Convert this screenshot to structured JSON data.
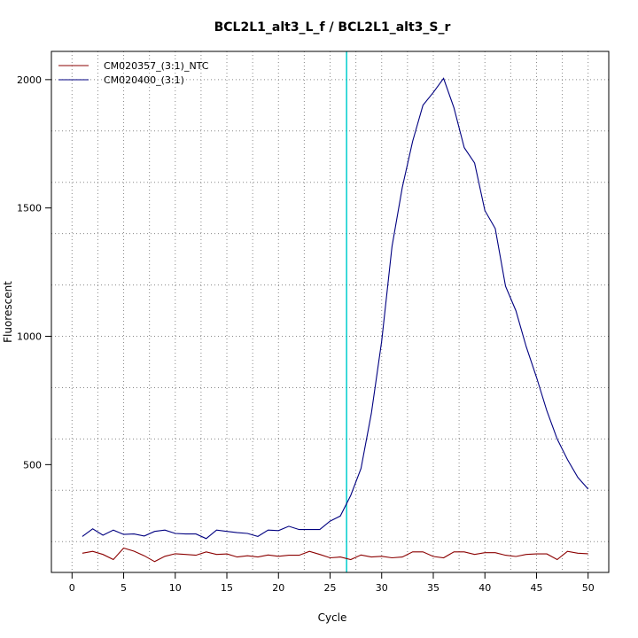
{
  "chart_data": {
    "type": "line",
    "title": "BCL2L1_alt3_L_f / BCL2L1_alt3_S_r",
    "xlabel": "Cycle",
    "ylabel": "Fluorescent",
    "xlim": [
      -2,
      52
    ],
    "ylim": [
      80,
      2110
    ],
    "xticks": [
      0,
      5,
      10,
      15,
      20,
      25,
      30,
      35,
      40,
      45,
      50
    ],
    "yticks": [
      500,
      1000,
      1500,
      2000
    ],
    "grid": true,
    "legend_position": "top-left",
    "threshold_cycle": 26.6,
    "threshold_color": "#00cccc",
    "x": [
      1,
      2,
      3,
      4,
      5,
      6,
      7,
      8,
      9,
      10,
      11,
      12,
      13,
      14,
      15,
      16,
      17,
      18,
      19,
      20,
      21,
      22,
      23,
      24,
      25,
      26,
      27,
      28,
      29,
      30,
      31,
      32,
      33,
      34,
      35,
      36,
      37,
      38,
      39,
      40,
      41,
      42,
      43,
      44,
      45,
      46,
      47,
      48,
      49,
      50
    ],
    "series": [
      {
        "name": "CM020357_(3:1)_NTC",
        "color": "#8b0000",
        "values": [
          155,
          162,
          150,
          130,
          175,
          163,
          145,
          122,
          143,
          153,
          150,
          147,
          160,
          150,
          152,
          140,
          145,
          140,
          148,
          143,
          147,
          147,
          162,
          150,
          137,
          140,
          130,
          148,
          140,
          143,
          137,
          140,
          160,
          160,
          142,
          137,
          160,
          160,
          150,
          157,
          157,
          147,
          142,
          150,
          152,
          152,
          130,
          162,
          155,
          153
        ]
      },
      {
        "name": "CM020400_(3:1)",
        "color": "#000080",
        "values": [
          220,
          250,
          225,
          245,
          228,
          230,
          222,
          240,
          245,
          232,
          230,
          230,
          212,
          245,
          240,
          235,
          232,
          220,
          245,
          243,
          260,
          247,
          247,
          247,
          280,
          300,
          380,
          485,
          700,
          980,
          1350,
          1580,
          1760,
          1900,
          1950,
          2005,
          1890,
          1735,
          1675,
          1490,
          1420,
          1195,
          1100,
          960,
          840,
          710,
          600,
          520,
          450,
          405
        ]
      }
    ]
  }
}
